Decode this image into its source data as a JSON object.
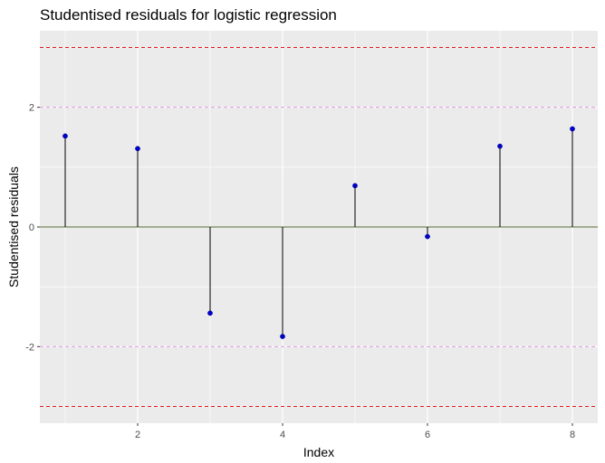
{
  "chart_data": {
    "type": "scatter",
    "style": "stem",
    "title": "Studentised residuals for logistic regression",
    "xlabel": "Index",
    "ylabel": "Studentised residuals",
    "x": [
      1,
      2,
      3,
      4,
      5,
      6,
      7,
      8
    ],
    "y": [
      1.52,
      1.31,
      -1.44,
      -1.83,
      0.69,
      -0.16,
      1.35,
      1.64
    ],
    "xlim": [
      0.65,
      8.35
    ],
    "ylim": [
      -3.28,
      3.28
    ],
    "x_ticks": [
      2,
      4,
      6,
      8
    ],
    "y_ticks": [
      -2,
      0,
      2
    ],
    "grid": true,
    "reference_lines": [
      {
        "y": 0,
        "color": "#556b2f",
        "style": "solid"
      },
      {
        "y": 2,
        "color": "#dd99dd",
        "style": "dashed"
      },
      {
        "y": -2,
        "color": "#dd99dd",
        "style": "dashed"
      },
      {
        "y": 3,
        "color": "#e31a1c",
        "style": "dashed"
      },
      {
        "y": -3,
        "color": "#e31a1c",
        "style": "dashed"
      }
    ],
    "colors": {
      "panel_background": "#ebebeb",
      "grid": "#ffffff",
      "point": "#0000cd",
      "stem": "#000000"
    }
  }
}
